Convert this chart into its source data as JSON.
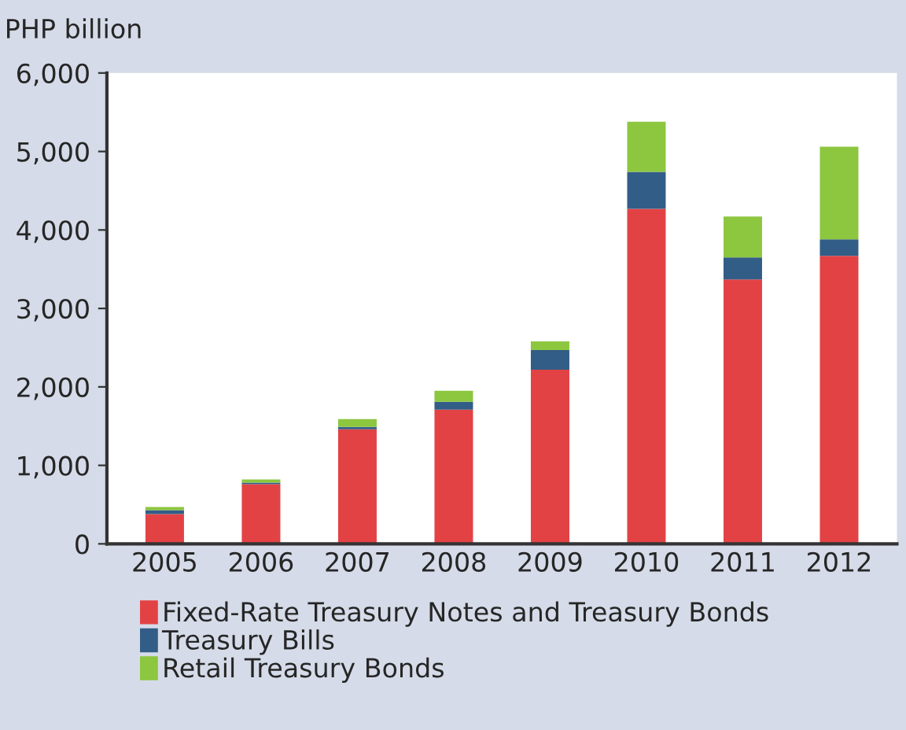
{
  "chart_data": {
    "type": "bar",
    "stacked": true,
    "ylabel": "PHP billion",
    "categories": [
      "2005",
      "2006",
      "2007",
      "2008",
      "2009",
      "2010",
      "2011",
      "2012"
    ],
    "series": [
      {
        "name": "Fixed-Rate Treasury Notes and Treasury Bonds",
        "color": "#e34244",
        "values": [
          380,
          760,
          1460,
          1710,
          2220,
          4270,
          3370,
          3670
        ]
      },
      {
        "name": "Treasury Bills",
        "color": "#325d87",
        "values": [
          50,
          20,
          30,
          100,
          250,
          470,
          280,
          210
        ]
      },
      {
        "name": "Retail Treasury Bonds",
        "color": "#8dc63f",
        "values": [
          40,
          40,
          100,
          140,
          110,
          640,
          520,
          1180
        ]
      }
    ],
    "ylim": [
      0,
      6000
    ],
    "yticks": [
      {
        "value": 0,
        "label": "0"
      },
      {
        "value": 1000,
        "label": "1,000"
      },
      {
        "value": 2000,
        "label": "2,000"
      },
      {
        "value": 3000,
        "label": "3,000"
      },
      {
        "value": 4000,
        "label": "4,000"
      },
      {
        "value": 5000,
        "label": "5,000"
      },
      {
        "value": 6000,
        "label": "6,000"
      }
    ],
    "grid": false,
    "legend": "bottom"
  }
}
